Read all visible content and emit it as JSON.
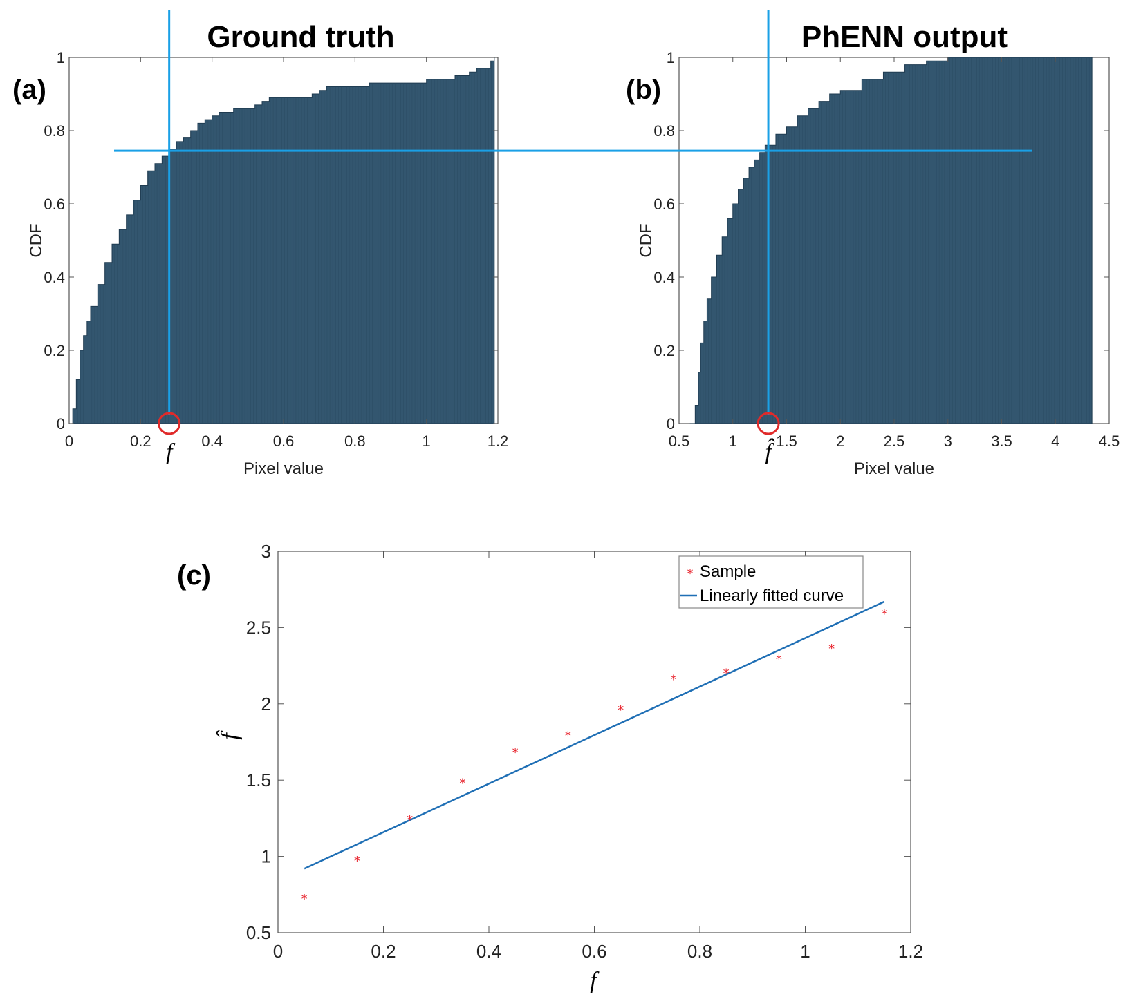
{
  "colors": {
    "cdf_fill": "#33566f",
    "cdf_edge": "#1f3b50",
    "guide_line": "#1aa0e6",
    "marker_circle": "#e02a2a",
    "sample_marker": "#e8202a",
    "fit_line": "#1f6fb5",
    "axis": "#555555"
  },
  "chart_data": [
    {
      "type": "area",
      "panel_label": "(a)",
      "title": "Ground truth",
      "xlabel": "Pixel value",
      "ylabel": "CDF",
      "xlim": [
        0,
        1.2
      ],
      "ylim": [
        0,
        1
      ],
      "xticks": [
        "0",
        "0.2",
        "0.4",
        "0.6",
        "0.8",
        "1",
        "1.2"
      ],
      "yticks": [
        "0",
        "0.2",
        "0.4",
        "0.6",
        "0.8",
        "1"
      ],
      "x": [
        0,
        0.01,
        0.02,
        0.03,
        0.04,
        0.05,
        0.06,
        0.08,
        0.1,
        0.12,
        0.14,
        0.16,
        0.18,
        0.2,
        0.22,
        0.24,
        0.26,
        0.28,
        0.3,
        0.32,
        0.34,
        0.36,
        0.38,
        0.4,
        0.42,
        0.44,
        0.46,
        0.48,
        0.5,
        0.52,
        0.54,
        0.56,
        0.58,
        0.6,
        0.62,
        0.64,
        0.66,
        0.68,
        0.7,
        0.72,
        0.74,
        0.76,
        0.78,
        0.8,
        0.82,
        0.84,
        0.86,
        0.88,
        0.9,
        0.92,
        0.94,
        0.96,
        0.98,
        1.0,
        1.02,
        1.04,
        1.06,
        1.08,
        1.1,
        1.12,
        1.14,
        1.16,
        1.18,
        1.19
      ],
      "y": [
        0.0,
        0.04,
        0.12,
        0.2,
        0.24,
        0.28,
        0.32,
        0.38,
        0.44,
        0.49,
        0.53,
        0.57,
        0.61,
        0.65,
        0.69,
        0.71,
        0.73,
        0.75,
        0.77,
        0.78,
        0.8,
        0.82,
        0.83,
        0.84,
        0.85,
        0.85,
        0.86,
        0.86,
        0.86,
        0.87,
        0.88,
        0.89,
        0.89,
        0.89,
        0.89,
        0.89,
        0.89,
        0.9,
        0.91,
        0.92,
        0.92,
        0.92,
        0.92,
        0.92,
        0.92,
        0.93,
        0.93,
        0.93,
        0.93,
        0.93,
        0.93,
        0.93,
        0.93,
        0.94,
        0.94,
        0.94,
        0.94,
        0.95,
        0.95,
        0.96,
        0.97,
        0.97,
        0.99,
        1.0
      ],
      "marker_x": 0.28,
      "marker_label": "f",
      "guide_level": 0.745
    },
    {
      "type": "area",
      "panel_label": "(b)",
      "title": "PhENN output",
      "xlabel": "Pixel value",
      "ylabel": "CDF",
      "xlim": [
        0.5,
        4.5
      ],
      "ylim": [
        0,
        1
      ],
      "xticks": [
        "0.5",
        "1",
        "1.5",
        "2",
        "2.5",
        "3",
        "3.5",
        "4",
        "4.5"
      ],
      "yticks": [
        "0",
        "0.2",
        "0.4",
        "0.6",
        "0.8",
        "1"
      ],
      "x": [
        0.6,
        0.63,
        0.65,
        0.68,
        0.7,
        0.73,
        0.76,
        0.8,
        0.85,
        0.9,
        0.95,
        1.0,
        1.05,
        1.1,
        1.15,
        1.2,
        1.25,
        1.3,
        1.4,
        1.5,
        1.6,
        1.7,
        1.8,
        1.9,
        2.0,
        2.2,
        2.4,
        2.6,
        2.8,
        3.0,
        3.2,
        3.4,
        3.6,
        3.8,
        4.0,
        4.2,
        4.34
      ],
      "y": [
        0.0,
        0.0,
        0.05,
        0.14,
        0.22,
        0.28,
        0.34,
        0.4,
        0.46,
        0.51,
        0.56,
        0.6,
        0.64,
        0.67,
        0.7,
        0.72,
        0.74,
        0.76,
        0.79,
        0.81,
        0.84,
        0.86,
        0.88,
        0.9,
        0.91,
        0.94,
        0.96,
        0.98,
        0.99,
        1.0,
        1.0,
        1.0,
        1.0,
        1.0,
        1.0,
        1.0,
        1.0
      ],
      "marker_x": 1.33,
      "marker_label": "f̂",
      "guide_level": 0.745
    },
    {
      "type": "scatter",
      "panel_label": "(c)",
      "xlabel": "f",
      "ylabel": "f̂",
      "xlim": [
        0,
        1.2
      ],
      "ylim": [
        0.5,
        3
      ],
      "xticks": [
        "0",
        "0.2",
        "0.4",
        "0.6",
        "0.8",
        "1",
        "1.2"
      ],
      "yticks": [
        "0.5",
        "1",
        "1.5",
        "2",
        "2.5",
        "3"
      ],
      "series": [
        {
          "name": "Sample",
          "x": [
            0.05,
            0.15,
            0.25,
            0.35,
            0.45,
            0.55,
            0.65,
            0.75,
            0.85,
            0.95,
            1.05,
            1.15
          ],
          "y": [
            0.73,
            0.98,
            1.25,
            1.49,
            1.69,
            1.8,
            1.97,
            2.17,
            2.21,
            2.3,
            2.37,
            2.6
          ]
        },
        {
          "name": "Linearly fitted curve",
          "x": [
            0.05,
            1.15
          ],
          "y": [
            0.92,
            2.67
          ]
        }
      ],
      "legend_position": "top-right"
    }
  ]
}
